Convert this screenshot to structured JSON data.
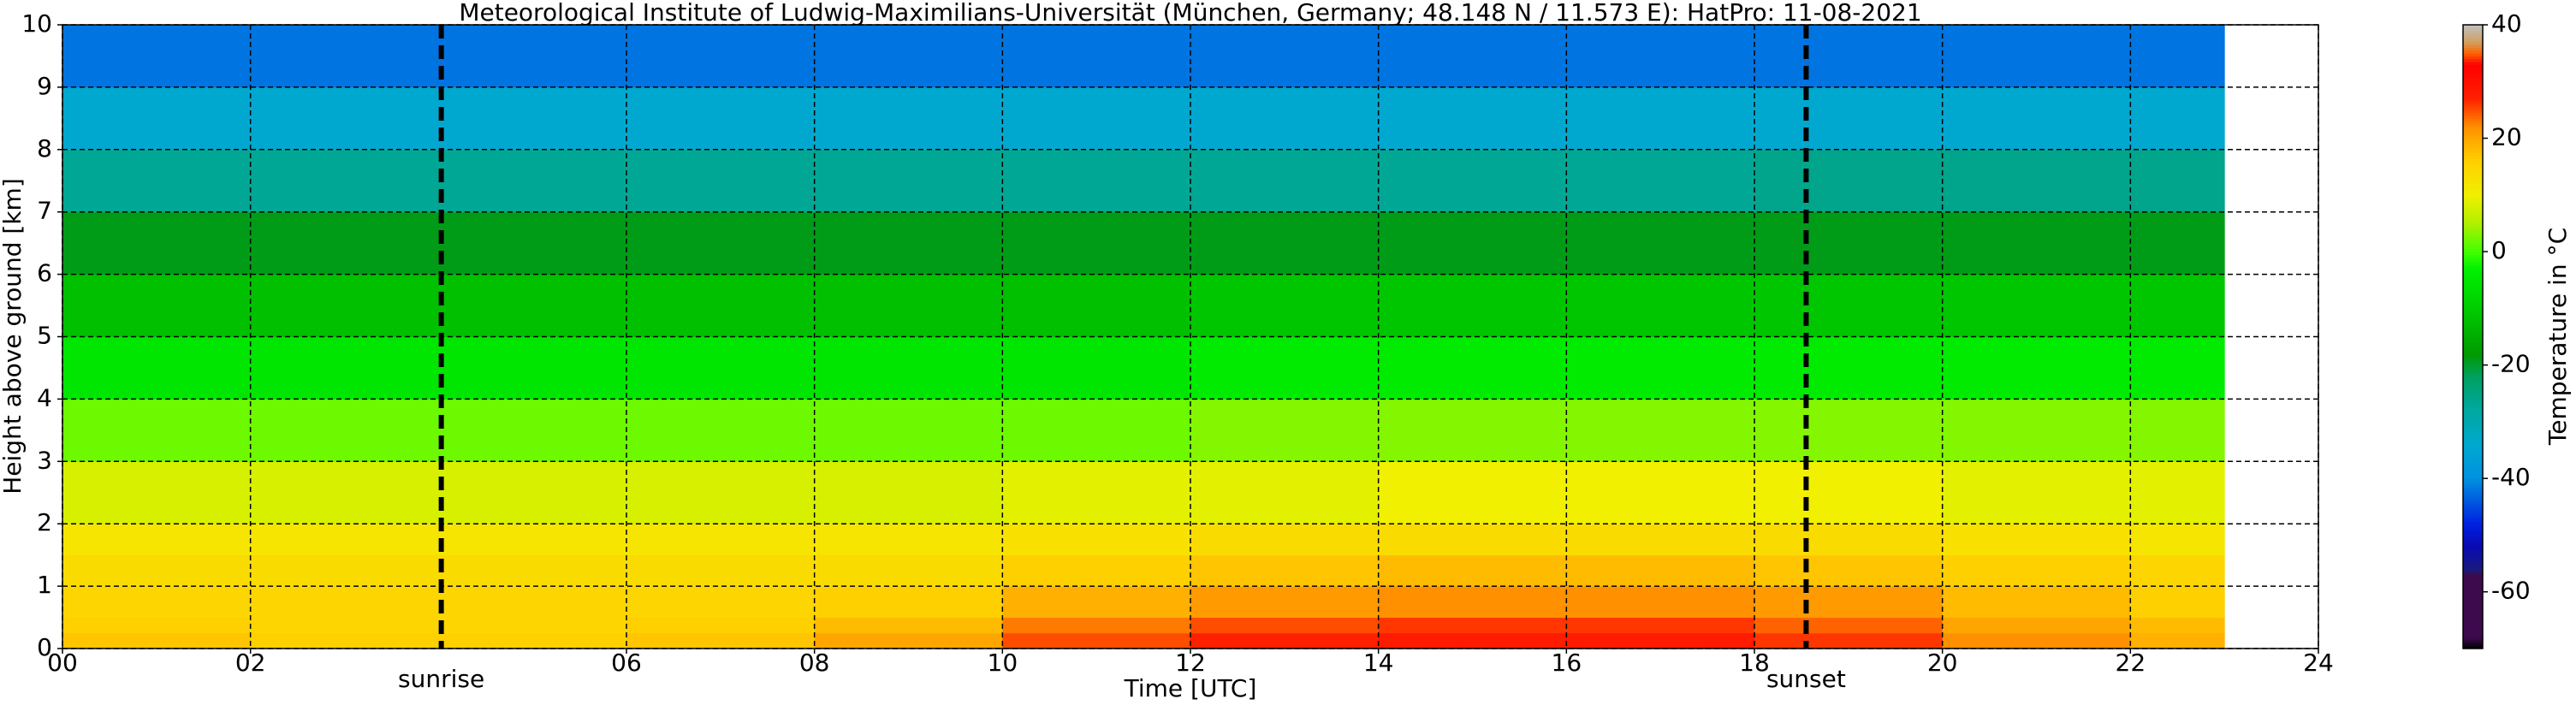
{
  "chart_data": {
    "type": "heatmap",
    "title": "Meteorological Institute of Ludwig-Maximilians-Universität (München, Germany; 48.148 N / 11.573 E):    HatPro: 11-08-2021",
    "x_label": "Time [UTC]",
    "y_label": "Height above ground [km]",
    "colorbar_label": "Temperature in °C",
    "xlim": [
      0,
      24
    ],
    "ylim": [
      0,
      10
    ],
    "xticks": [
      {
        "value": 0,
        "label": "00"
      },
      {
        "value": 2,
        "label": "02"
      },
      {
        "value": 6,
        "label": "06"
      },
      {
        "value": 8,
        "label": "08"
      },
      10,
      12,
      14,
      16,
      18,
      20,
      22,
      24
    ],
    "yticks": [
      0,
      1,
      2,
      3,
      4,
      5,
      6,
      7,
      8,
      9,
      10
    ],
    "grid": true,
    "x_bins": [
      0,
      2,
      4,
      6,
      8,
      10,
      12,
      14,
      16,
      18,
      20,
      22,
      23
    ],
    "y_bins": [
      0,
      0.25,
      0.5,
      1,
      1.5,
      2,
      3,
      4,
      5,
      6,
      7,
      8,
      9,
      10
    ],
    "values": [
      [
        17,
        16,
        16,
        17,
        20,
        25,
        27,
        28,
        28,
        26,
        22,
        19
      ],
      [
        16,
        15,
        15,
        16,
        18,
        23,
        25,
        26,
        26,
        24,
        20,
        18
      ],
      [
        15,
        15,
        15,
        15,
        16,
        19,
        21,
        22,
        22,
        21,
        18,
        16
      ],
      [
        14,
        14,
        14,
        14,
        14,
        16,
        17,
        18,
        18,
        17,
        16,
        15
      ],
      [
        12,
        12,
        12,
        12,
        12,
        13,
        14,
        14,
        14,
        14,
        13,
        12
      ],
      [
        8,
        8,
        8,
        8,
        8,
        9,
        9,
        10,
        10,
        10,
        9,
        9
      ],
      [
        2,
        2,
        2,
        2,
        2,
        2,
        3,
        3,
        3,
        3,
        3,
        3
      ],
      [
        -5,
        -5,
        -5,
        -5,
        -5,
        -5,
        -4,
        -4,
        -4,
        -4,
        -4,
        -4
      ],
      [
        -12,
        -12,
        -12,
        -12,
        -12,
        -12,
        -11,
        -11,
        -11,
        -11,
        -11,
        -11
      ],
      [
        -19,
        -19,
        -19,
        -19,
        -19,
        -19,
        -19,
        -19,
        -19,
        -19,
        -19,
        -19
      ],
      [
        -27,
        -27,
        -27,
        -27,
        -27,
        -27,
        -27,
        -27,
        -27,
        -26,
        -26,
        -26
      ],
      [
        -34,
        -34,
        -34,
        -34,
        -34,
        -34,
        -34,
        -34,
        -34,
        -34,
        -34,
        -34
      ],
      [
        -42,
        -42,
        -42,
        -42,
        -42,
        -42,
        -42,
        -42,
        -42,
        -42,
        -42,
        -42
      ]
    ],
    "clim": [
      -70,
      40
    ],
    "colorbar_ticks": [
      -60,
      -40,
      -20,
      0,
      20,
      40
    ],
    "colormap": [
      {
        "value": -70,
        "color": "#000000"
      },
      {
        "value": -68,
        "color": "#3d0a4d"
      },
      {
        "value": -57,
        "color": "#3d0a4d"
      },
      {
        "value": -56,
        "color": "#1a1a80"
      },
      {
        "value": -52,
        "color": "#0a0ab0"
      },
      {
        "value": -48,
        "color": "#0020e0"
      },
      {
        "value": -40,
        "color": "#0090e0"
      },
      {
        "value": -34,
        "color": "#00a8d0"
      },
      {
        "value": -28,
        "color": "#00a8a0"
      },
      {
        "value": -22,
        "color": "#00a060"
      },
      {
        "value": -18,
        "color": "#009a00"
      },
      {
        "value": -10,
        "color": "#00cc00"
      },
      {
        "value": -3,
        "color": "#00f000"
      },
      {
        "value": 0,
        "color": "#40ff00"
      },
      {
        "value": 5,
        "color": "#b0f000"
      },
      {
        "value": 10,
        "color": "#f0f000"
      },
      {
        "value": 16,
        "color": "#ffd000"
      },
      {
        "value": 22,
        "color": "#ff9000"
      },
      {
        "value": 27,
        "color": "#ff2000"
      },
      {
        "value": 33,
        "color": "#ff0000"
      },
      {
        "value": 35,
        "color": "#ff6000"
      },
      {
        "value": 37,
        "color": "#d0a060"
      },
      {
        "value": 40,
        "color": "#c0c0c0"
      }
    ],
    "annotations": [
      {
        "text": "sunrise",
        "x": 4.03
      },
      {
        "text": "sunset",
        "x": 18.55
      }
    ]
  }
}
